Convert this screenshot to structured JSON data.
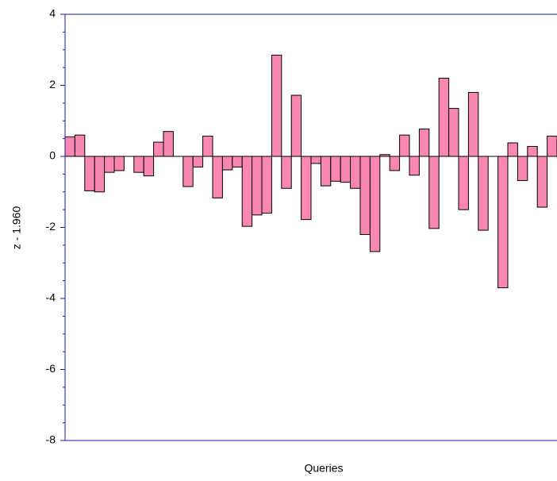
{
  "chart_data": {
    "type": "bar",
    "x_label": "Queries",
    "y_label": "z - 1.960",
    "categories": [
      null,
      null,
      null,
      null,
      null,
      null,
      null,
      null,
      null,
      null,
      null,
      null,
      null,
      null,
      null,
      null,
      null,
      null,
      null,
      null,
      null,
      null,
      null,
      null,
      null,
      null,
      null,
      null,
      null,
      null,
      null,
      null,
      null,
      null,
      null,
      null,
      null,
      null,
      null,
      null,
      null,
      null,
      null,
      null,
      null,
      null,
      null,
      null,
      null,
      null
    ],
    "values": [
      0.55,
      0.6,
      -0.97,
      -1.0,
      -0.45,
      -0.4,
      0,
      -0.45,
      -0.55,
      0.4,
      0.7,
      0,
      -0.85,
      -0.3,
      0.57,
      -1.17,
      -0.38,
      -0.3,
      -1.97,
      -1.65,
      -1.6,
      2.85,
      -0.9,
      1.72,
      -1.78,
      -0.2,
      -0.83,
      -0.7,
      -0.73,
      -0.9,
      -2.2,
      -2.68,
      0.05,
      -0.4,
      0.6,
      -0.53,
      0.77,
      -2.03,
      2.2,
      1.35,
      -1.5,
      1.8,
      -2.08,
      0,
      -3.7,
      0.38,
      -0.68,
      0.28,
      -1.43,
      0.57
    ],
    "color": "#f987b1",
    "ylim": [
      -8,
      4
    ],
    "yticks": [
      4,
      2,
      0,
      -2,
      -4,
      -6,
      -8
    ],
    "yminorticks": [
      3.5,
      3,
      2.5,
      1.5,
      1,
      0.5,
      -0.5,
      -1,
      -1.5,
      -2.5,
      -3,
      -3.5,
      -4.5,
      -5,
      -5.5,
      -6.5,
      -7,
      -7.5
    ],
    "grid": false
  }
}
